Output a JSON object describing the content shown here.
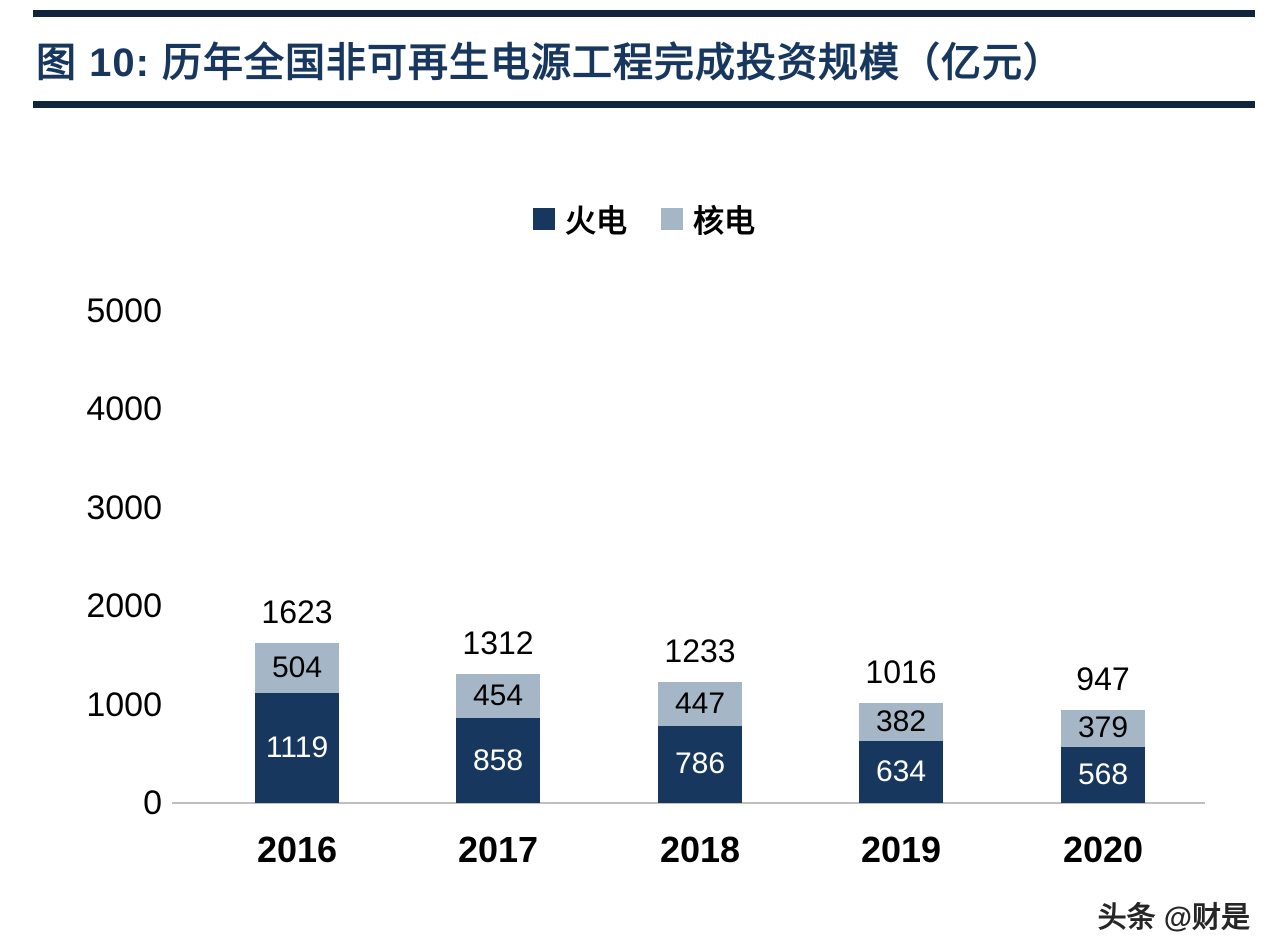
{
  "header": {
    "title": "图 10:  历年全国非可再生电源工程完成投资规模（亿元）"
  },
  "watermark": "头条 @财是",
  "colors": {
    "thermal": "#17375E",
    "nuclear": "#A5B6C6",
    "title": "#17375E",
    "rule": "#10243E",
    "axis_line": "#BFBFBF"
  },
  "chart_data": {
    "type": "bar",
    "stacked": true,
    "title": "历年全国非可再生电源工程完成投资规模（亿元）",
    "categories": [
      "2016",
      "2017",
      "2018",
      "2019",
      "2020"
    ],
    "series": [
      {
        "key": "thermal",
        "name": "火电",
        "color_key": "thermal",
        "label_color": "#FFFFFF",
        "values": [
          1119,
          858,
          786,
          634,
          568
        ]
      },
      {
        "key": "nuclear",
        "name": "核电",
        "color_key": "nuclear",
        "label_color": "#000000",
        "values": [
          504,
          454,
          447,
          382,
          379
        ]
      }
    ],
    "totals": [
      1623,
      1312,
      1233,
      1016,
      947
    ],
    "xlabel": "",
    "ylabel": "",
    "ylim": [
      0,
      5000
    ],
    "yticks": [
      0,
      1000,
      2000,
      3000,
      4000,
      5000
    ],
    "grid": false,
    "legend_position": "top-center"
  }
}
